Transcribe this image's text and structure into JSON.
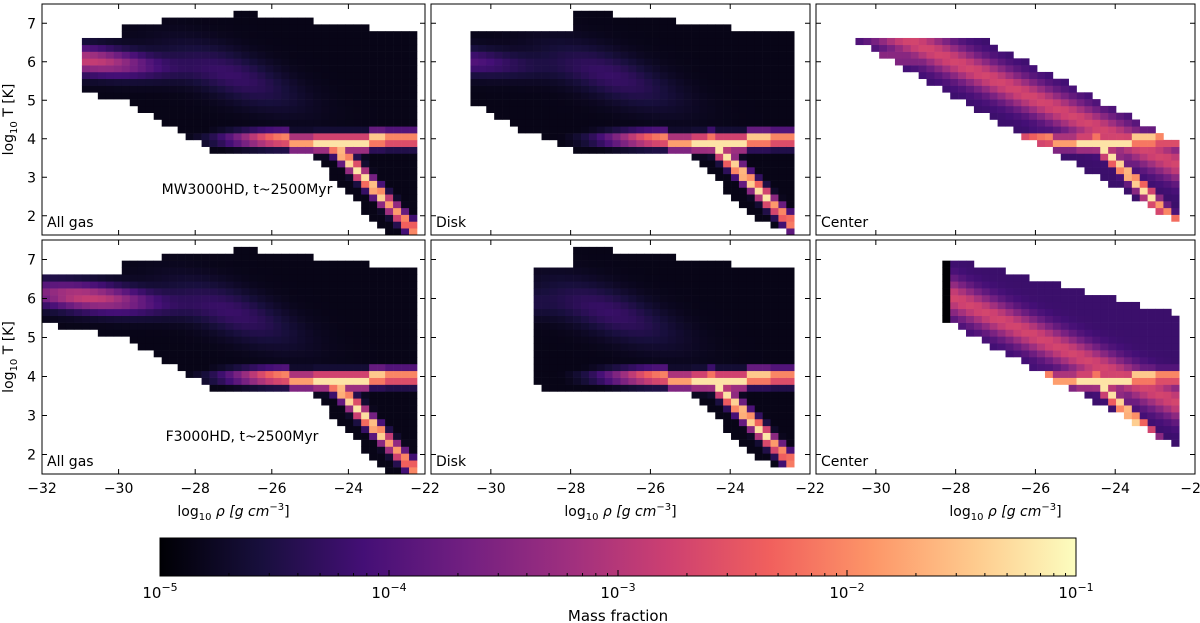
{
  "chart_data": {
    "type": "heatmap",
    "description_free": true,
    "x_axis": {
      "label_main": "log",
      "label_sub": "10",
      "label_rest": " ρ [g cm",
      "label_sup": "−3",
      "label_end": "]",
      "range": [
        -32,
        -22
      ]
    },
    "y_axis": {
      "label_main": "log",
      "label_sub": "10",
      "label_rest": " T [K]",
      "range": [
        1.5,
        7.5
      ],
      "ticks": [
        "2",
        "3",
        "4",
        "5",
        "6",
        "7"
      ]
    },
    "x_ticks_left": [
      "−32",
      "−30",
      "−28",
      "−26",
      "−24",
      "−22"
    ],
    "x_ticks_other": [
      "−30",
      "−28",
      "−26",
      "−24",
      "−22"
    ],
    "x_tick_values_left": [
      -32,
      -30,
      -28,
      -26,
      -24,
      -22
    ],
    "x_tick_values_other": [
      -30,
      -28,
      -26,
      -24,
      -22
    ],
    "y_tick_values": [
      2,
      3,
      4,
      5,
      6,
      7
    ],
    "panels": [
      {
        "row": 0,
        "col": 0,
        "label": "All gas",
        "annotation": "MW3000HD, t~2500Myr",
        "xlim": [
          -32,
          -22
        ]
      },
      {
        "row": 0,
        "col": 1,
        "label": "Disk",
        "xlim": [
          -31.5,
          -22
        ]
      },
      {
        "row": 0,
        "col": 2,
        "label": "Center",
        "xlim": [
          -31.5,
          -22
        ]
      },
      {
        "row": 1,
        "col": 0,
        "label": "All gas",
        "annotation": "F3000HD, t~2500Myr",
        "xlim": [
          -32,
          -22
        ]
      },
      {
        "row": 1,
        "col": 1,
        "label": "Disk",
        "xlim": [
          -31.5,
          -22
        ]
      },
      {
        "row": 1,
        "col": 2,
        "label": "Center",
        "xlim": [
          -31.5,
          -22
        ]
      }
    ],
    "colorbar": {
      "label": "Mass fraction",
      "scale": "log",
      "range": [
        1e-05,
        0.1
      ],
      "tick_labels": [
        {
          "base": "10",
          "exp": "−5"
        },
        {
          "base": "10",
          "exp": "−4"
        },
        {
          "base": "10",
          "exp": "−3"
        },
        {
          "base": "10",
          "exp": "−2"
        },
        {
          "base": "10",
          "exp": "−1"
        }
      ],
      "colormap": "magma",
      "stops": [
        "#000004",
        "#180f3d",
        "#440f76",
        "#721f81",
        "#9e2f7f",
        "#cd4071",
        "#f1605d",
        "#fd9668",
        "#feca8d",
        "#fcfdbf"
      ]
    }
  }
}
